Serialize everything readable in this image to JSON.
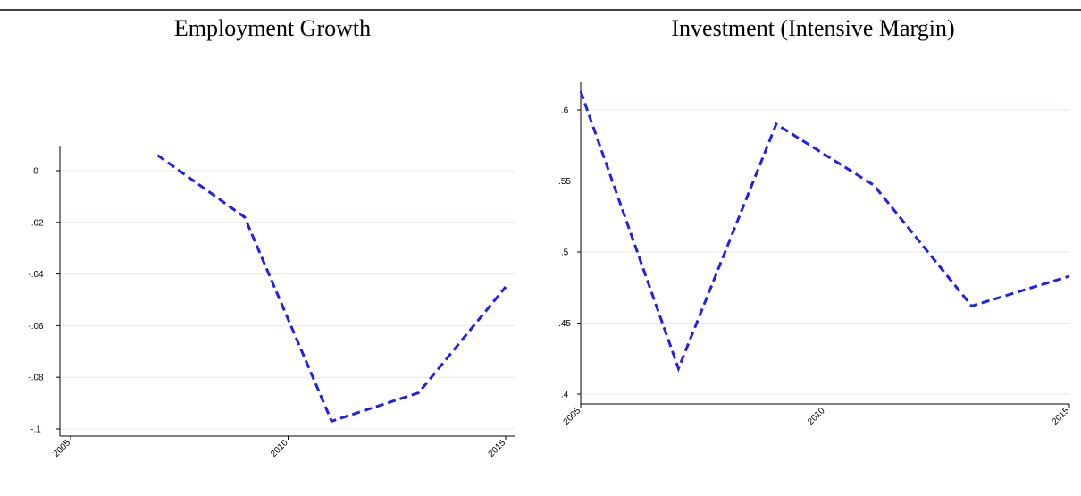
{
  "colors": {
    "series": "#1f1ff0",
    "grid": "#e3ecec",
    "axis": "#000000"
  },
  "chart_data": [
    {
      "type": "line",
      "title": "Employment Growth",
      "xlabel": "",
      "ylabel": "",
      "xlim": [
        2005,
        2015
      ],
      "ylim": [
        -0.1,
        0
      ],
      "x_ticks": [
        2005,
        2010,
        2015
      ],
      "x_tick_labels": [
        "2005",
        "2010",
        "2015"
      ],
      "y_ticks": [
        0,
        -0.02,
        -0.04,
        -0.06,
        -0.08,
        -0.1
      ],
      "y_tick_labels": [
        "0",
        "-.02",
        "-.04",
        "-.06",
        "-.08",
        "-.1"
      ],
      "grid": true,
      "legend": "none",
      "series": [
        {
          "x": [
            2007,
            2009,
            2011,
            2013,
            2015
          ],
          "y": [
            0.006,
            -0.018,
            -0.097,
            -0.086,
            -0.045
          ]
        }
      ]
    },
    {
      "type": "line",
      "title": "Investment (Intensive Margin)",
      "xlabel": "",
      "ylabel": "",
      "xlim": [
        2005,
        2015
      ],
      "ylim": [
        0.4,
        0.6
      ],
      "x_ticks": [
        2005,
        2010,
        2015
      ],
      "x_tick_labels": [
        "2005",
        "2010",
        "2015"
      ],
      "y_ticks": [
        0.6,
        0.55,
        0.5,
        0.45,
        0.4
      ],
      "y_tick_labels": [
        ".6",
        ".55",
        ".5",
        ".45",
        ".4"
      ],
      "grid": true,
      "legend": "none",
      "series": [
        {
          "x": [
            2005,
            2007,
            2009,
            2011,
            2013,
            2015
          ],
          "y": [
            0.613,
            0.418,
            0.59,
            0.547,
            0.462,
            0.483
          ]
        }
      ]
    }
  ]
}
